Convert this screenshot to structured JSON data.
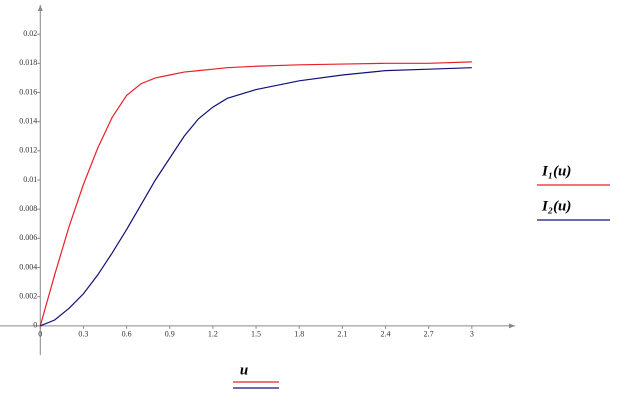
{
  "chart_data": {
    "type": "line",
    "x_label": "u",
    "x": [
      0,
      0.1,
      0.2,
      0.3,
      0.4,
      0.5,
      0.6,
      0.7,
      0.8,
      0.9,
      1.0,
      1.1,
      1.2,
      1.3,
      1.5,
      1.8,
      2.1,
      2.4,
      2.7,
      3.0
    ],
    "series": [
      {
        "name": "I₁(u)",
        "color": "#e8202a",
        "values": [
          0,
          0.0035,
          0.0068,
          0.0097,
          0.0122,
          0.0143,
          0.0158,
          0.0166,
          0.017,
          0.0172,
          0.0174,
          0.0175,
          0.0176,
          0.0177,
          0.0178,
          0.0179,
          0.01795,
          0.018,
          0.018,
          0.0181
        ]
      },
      {
        "name": "I₂(u)",
        "color": "#10107a",
        "values": [
          0,
          0.0004,
          0.0012,
          0.0022,
          0.0035,
          0.005,
          0.0066,
          0.0083,
          0.01,
          0.0115,
          0.013,
          0.0142,
          0.015,
          0.0156,
          0.0162,
          0.0168,
          0.0172,
          0.0175,
          0.0176,
          0.0177
        ]
      }
    ],
    "xlim": [
      -0.28,
      3.3
    ],
    "ylim": [
      -0.002,
      0.022
    ],
    "xticks": [
      0,
      0.3,
      0.6,
      0.9,
      1.2,
      1.5,
      1.8,
      2.1,
      2.4,
      2.7,
      3
    ],
    "yticks": [
      0,
      0.002,
      0.004,
      0.006,
      0.008,
      0.01,
      0.012,
      0.014,
      0.016,
      0.018,
      0.02
    ]
  }
}
